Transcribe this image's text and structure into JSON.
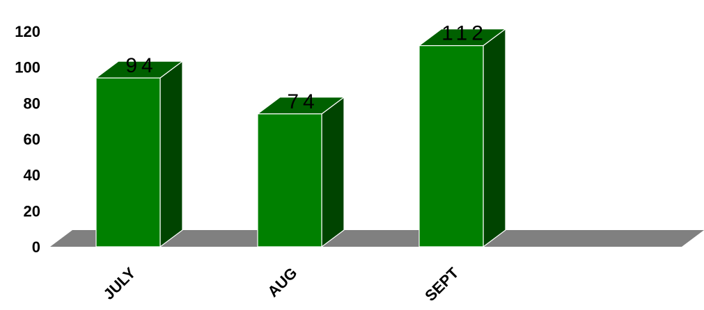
{
  "chart_data": {
    "type": "bar",
    "categories": [
      "JULY",
      "AUG",
      "SEPT"
    ],
    "values": [
      94,
      74,
      112
    ],
    "data_labels": [
      "94",
      "74",
      "112"
    ],
    "yticks": [
      "0",
      "20",
      "40",
      "60",
      "80",
      "100",
      "120"
    ],
    "ylim": [
      0,
      120
    ],
    "title": "",
    "xlabel": "",
    "ylabel": "",
    "style": "3d-column",
    "grid": false,
    "legend": "none"
  },
  "colors": {
    "bar_front": "#008000",
    "bar_side": "#004400",
    "bar_top": "#006000",
    "bar_edge": "#ffffff",
    "floor": "#808080"
  }
}
